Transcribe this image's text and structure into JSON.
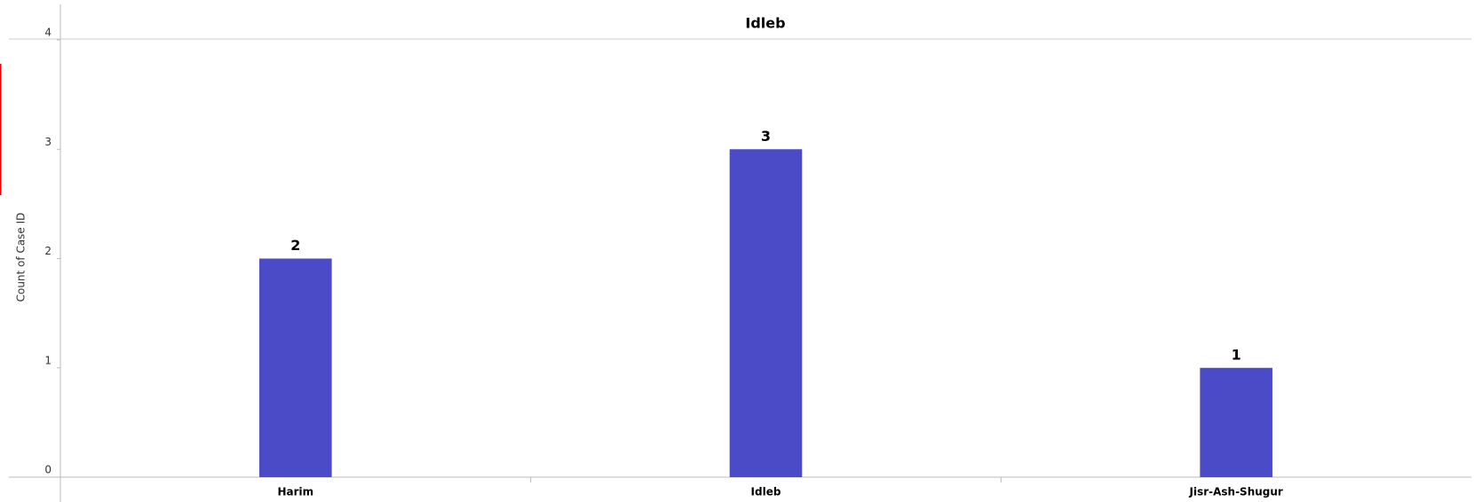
{
  "chart_data": {
    "type": "bar",
    "title": "Idleb",
    "y_label": "Count of Case ID",
    "categories": [
      "Harim",
      "Idleb",
      "Jisr-Ash-Shugur"
    ],
    "values": [
      2,
      3,
      1
    ],
    "color": "#4b4bc8",
    "ylim": [
      0,
      4
    ],
    "yticks": [
      0,
      1,
      2,
      3,
      4
    ],
    "data_labels": true
  }
}
